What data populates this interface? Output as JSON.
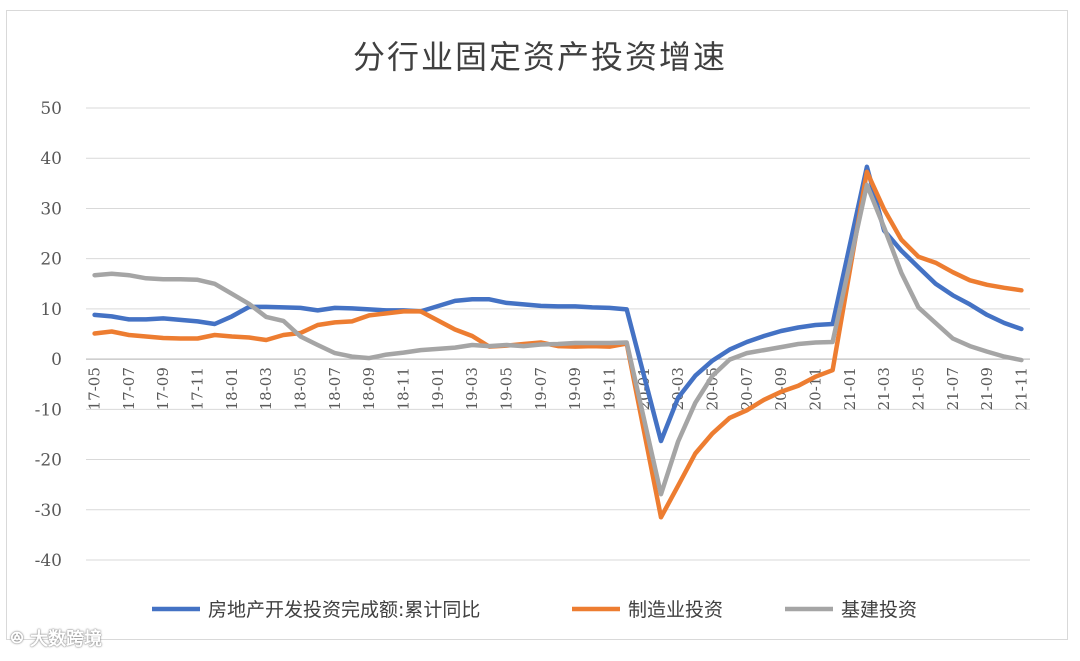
{
  "chart_data": {
    "type": "line",
    "title": "分行业固定资产投资增速",
    "ylim": [
      -40,
      50
    ],
    "yticks": [
      50,
      40,
      30,
      20,
      10,
      0,
      -10,
      -20,
      -30,
      -40
    ],
    "grid": "horizontal",
    "legend_placement": "bottom",
    "categories": [
      "17-05",
      "17-06",
      "17-07",
      "17-08",
      "17-09",
      "17-10",
      "17-11",
      "17-12",
      "18-01",
      "18-02",
      "18-03",
      "18-04",
      "18-05",
      "18-06",
      "18-07",
      "18-08",
      "18-09",
      "18-10",
      "18-11",
      "18-12",
      "19-01",
      "19-02",
      "19-03",
      "19-04",
      "19-05",
      "19-06",
      "19-07",
      "19-08",
      "19-09",
      "19-10",
      "19-11",
      "19-12",
      "20-01",
      "20-02",
      "20-03",
      "20-04",
      "20-05",
      "20-06",
      "20-07",
      "20-08",
      "20-09",
      "20-10",
      "20-11",
      "20-12",
      "21-01",
      "21-02",
      "21-03",
      "21-04",
      "21-05",
      "21-06",
      "21-07",
      "21-08",
      "21-09",
      "21-10",
      "21-11"
    ],
    "tick_labels": [
      "17-05",
      "17-07",
      "17-09",
      "17-11",
      "18-01",
      "18-03",
      "18-05",
      "18-07",
      "18-09",
      "18-11",
      "19-01",
      "19-03",
      "19-05",
      "19-07",
      "19-09",
      "19-11",
      "20-01",
      "20-03",
      "20-05",
      "20-07",
      "20-09",
      "20-11",
      "21-01",
      "21-03",
      "21-05",
      "21-07",
      "21-09",
      "21-11"
    ],
    "series": [
      {
        "name": "房地产开发投资完成额:累计同比",
        "color": "#4472C4",
        "values": [
          8.8,
          8.5,
          7.9,
          7.9,
          8.1,
          7.8,
          7.5,
          7.0,
          8.5,
          10.4,
          10.4,
          10.3,
          10.2,
          9.7,
          10.2,
          10.1,
          9.9,
          9.7,
          9.7,
          9.5,
          null,
          11.6,
          11.9,
          11.9,
          11.2,
          10.9,
          10.6,
          10.5,
          10.5,
          10.3,
          10.2,
          9.9,
          null,
          -16.3,
          -7.7,
          -3.3,
          -0.3,
          1.9,
          3.4,
          4.6,
          5.6,
          6.3,
          6.8,
          7.0,
          null,
          38.3,
          25.6,
          21.6,
          18.3,
          15.0,
          12.7,
          10.9,
          8.8,
          7.2,
          6.0
        ]
      },
      {
        "name": "制造业投资",
        "color": "#ED7D31",
        "values": [
          5.1,
          5.5,
          4.8,
          4.5,
          4.2,
          4.1,
          4.1,
          4.8,
          4.5,
          4.3,
          3.8,
          4.8,
          5.2,
          6.8,
          7.3,
          7.5,
          8.7,
          9.1,
          9.5,
          9.5,
          null,
          5.9,
          4.6,
          2.5,
          2.7,
          3.0,
          3.3,
          2.6,
          2.5,
          2.6,
          2.5,
          3.1,
          null,
          -31.5,
          -25.2,
          -18.8,
          -14.8,
          -11.7,
          -10.2,
          -8.1,
          -6.5,
          -5.3,
          -3.5,
          -2.2,
          null,
          37.3,
          29.8,
          23.8,
          20.4,
          19.2,
          17.3,
          15.7,
          14.8,
          14.2,
          13.7
        ]
      },
      {
        "name": "基建投资",
        "color": "#A5A5A5",
        "values": [
          16.7,
          17.0,
          16.7,
          16.1,
          15.9,
          15.9,
          15.8,
          15.0,
          13.0,
          11.0,
          8.4,
          7.6,
          4.5,
          2.8,
          1.2,
          0.5,
          0.2,
          0.9,
          1.3,
          1.8,
          null,
          2.3,
          2.8,
          2.6,
          2.8,
          2.6,
          2.9,
          3.0,
          3.2,
          3.2,
          3.2,
          3.3,
          null,
          -26.9,
          -16.4,
          -8.7,
          -3.3,
          -0.1,
          1.2,
          1.8,
          2.4,
          3.0,
          3.3,
          3.4,
          null,
          34.7,
          26.2,
          17.2,
          10.3,
          7.2,
          4.1,
          2.6,
          1.5,
          0.5,
          -0.2
        ]
      }
    ]
  },
  "watermark": "大数跨境"
}
